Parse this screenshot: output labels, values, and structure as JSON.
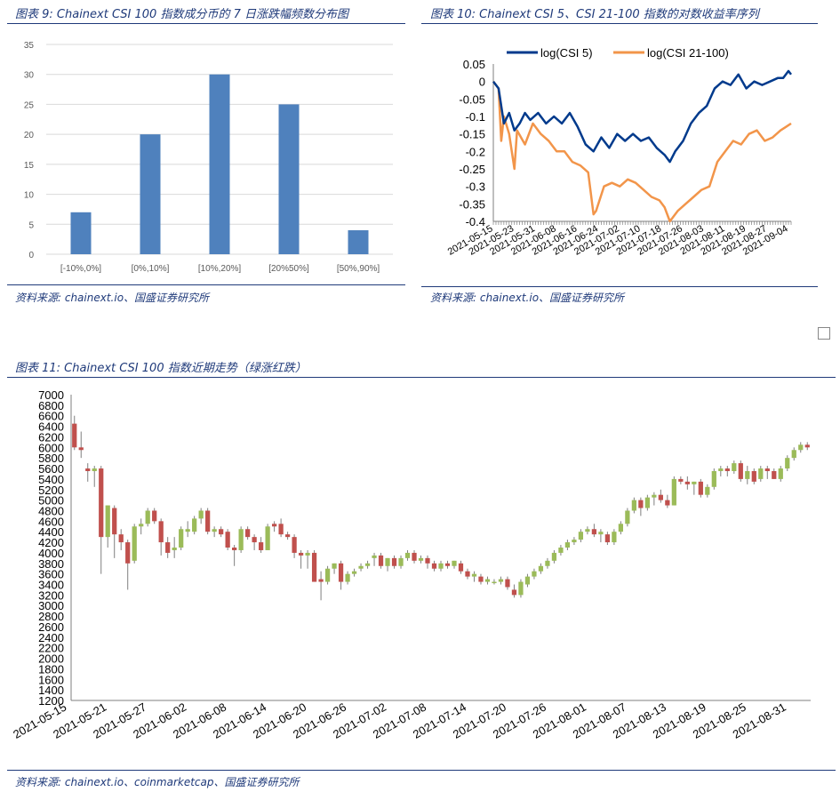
{
  "figures": [
    {
      "title": "图表 9:  Chainext CSI 100 指数成分币的 7 日涨跌幅频数分布图",
      "source": "资料来源:  chainext.io、国盛证券研究所"
    },
    {
      "title": "图表 10:  Chainext CSI 5、CSI 21-100 指数的对数收益率序列",
      "source": "资料来源:  chainext.io、国盛证券研究所"
    },
    {
      "title": "图表 11:  Chainext CSI 100 指数近期走势（绿涨红跌）",
      "source": "资料来源:  chainext.io、coinmarketcap、国盛证券研究所"
    }
  ],
  "colors": {
    "bar": "#4f81bd",
    "series1": "#003a8c",
    "series2": "#f2954a",
    "up": "#9bbb59",
    "down": "#c0504d",
    "title": "#1f3a7a"
  },
  "chart_data": [
    {
      "type": "bar",
      "title": "",
      "categories": [
        "[-10%,0%]",
        "[0%,10%]",
        "[10%,20%]",
        "[20%50%]",
        "[50%,90%]"
      ],
      "values": [
        7,
        20,
        30,
        25,
        4
      ],
      "ylim": [
        0,
        35
      ],
      "yticks": [
        0,
        5,
        10,
        15,
        20,
        25,
        30,
        35
      ],
      "grid": true,
      "xlabel": "",
      "ylabel": ""
    },
    {
      "type": "line",
      "title": "",
      "ylim": [
        -0.4,
        0.05
      ],
      "yticks": [
        0.05,
        0,
        -0.05,
        -0.1,
        -0.15,
        -0.2,
        -0.25,
        -0.3,
        -0.35,
        -0.4
      ],
      "ytick_labels": [
        "0.05",
        "0",
        "-0.05",
        "-0.1",
        "-0.15",
        "-0.2",
        "-0.25",
        "-0.3",
        "-0.35",
        "-0.4"
      ],
      "x_range": [
        "2021-05-15",
        "2021-09-05"
      ],
      "xtick_labels": [
        "2021-05-15",
        "2021-05-23",
        "2021-05-31",
        "2021-06-08",
        "2021-06-16",
        "2021-06-24",
        "2021-07-02",
        "2021-07-10",
        "2021-07-18",
        "2021-07-26",
        "2021-08-03",
        "2021-08-11",
        "2021-08-19",
        "2021-08-27",
        "2021-09-04"
      ],
      "legend": "top",
      "series": [
        {
          "name": "log(CSI 5)",
          "x": [
            "2021-05-15",
            "2021-05-17",
            "2021-05-19",
            "2021-05-21",
            "2021-05-23",
            "2021-05-25",
            "2021-05-27",
            "2021-05-29",
            "2021-06-01",
            "2021-06-04",
            "2021-06-07",
            "2021-06-10",
            "2021-06-13",
            "2021-06-16",
            "2021-06-19",
            "2021-06-22",
            "2021-06-25",
            "2021-06-28",
            "2021-07-01",
            "2021-07-04",
            "2021-07-07",
            "2021-07-10",
            "2021-07-13",
            "2021-07-16",
            "2021-07-19",
            "2021-07-21",
            "2021-07-23",
            "2021-07-26",
            "2021-07-29",
            "2021-08-01",
            "2021-08-04",
            "2021-08-07",
            "2021-08-10",
            "2021-08-13",
            "2021-08-16",
            "2021-08-19",
            "2021-08-22",
            "2021-08-25",
            "2021-08-28",
            "2021-08-31",
            "2021-09-02",
            "2021-09-04",
            "2021-09-05"
          ],
          "values": [
            0,
            -0.02,
            -0.12,
            -0.09,
            -0.14,
            -0.12,
            -0.09,
            -0.11,
            -0.09,
            -0.12,
            -0.1,
            -0.12,
            -0.09,
            -0.13,
            -0.18,
            -0.2,
            -0.16,
            -0.19,
            -0.15,
            -0.17,
            -0.15,
            -0.17,
            -0.16,
            -0.19,
            -0.21,
            -0.23,
            -0.2,
            -0.17,
            -0.12,
            -0.09,
            -0.07,
            -0.02,
            0,
            -0.01,
            0.02,
            -0.02,
            0,
            -0.01,
            0,
            0.01,
            0.01,
            0.03,
            0.02
          ]
        },
        {
          "name": "log(CSI 21-100)",
          "x": [
            "2021-05-15",
            "2021-05-17",
            "2021-05-18",
            "2021-05-19",
            "2021-05-21",
            "2021-05-23",
            "2021-05-24",
            "2021-05-27",
            "2021-05-30",
            "2021-06-02",
            "2021-06-05",
            "2021-06-08",
            "2021-06-11",
            "2021-06-14",
            "2021-06-17",
            "2021-06-20",
            "2021-06-22",
            "2021-06-23",
            "2021-06-26",
            "2021-06-29",
            "2021-07-02",
            "2021-07-05",
            "2021-07-08",
            "2021-07-11",
            "2021-07-14",
            "2021-07-17",
            "2021-07-19",
            "2021-07-21",
            "2021-07-24",
            "2021-07-27",
            "2021-07-30",
            "2021-08-02",
            "2021-08-05",
            "2021-08-08",
            "2021-08-11",
            "2021-08-14",
            "2021-08-17",
            "2021-08-20",
            "2021-08-23",
            "2021-08-26",
            "2021-08-29",
            "2021-09-01",
            "2021-09-03",
            "2021-09-05"
          ],
          "values": [
            0,
            -0.02,
            -0.17,
            -0.1,
            -0.15,
            -0.25,
            -0.14,
            -0.18,
            -0.12,
            -0.15,
            -0.17,
            -0.2,
            -0.2,
            -0.23,
            -0.24,
            -0.26,
            -0.38,
            -0.37,
            -0.3,
            -0.29,
            -0.3,
            -0.28,
            -0.29,
            -0.31,
            -0.33,
            -0.34,
            -0.36,
            -0.4,
            -0.37,
            -0.35,
            -0.33,
            -0.31,
            -0.3,
            -0.23,
            -0.2,
            -0.17,
            -0.18,
            -0.15,
            -0.14,
            -0.17,
            -0.16,
            -0.14,
            -0.13,
            -0.12
          ]
        }
      ]
    },
    {
      "type": "candlestick",
      "title": "",
      "ylim": [
        1200,
        7000
      ],
      "yticks": [
        1200,
        1400,
        1600,
        1800,
        2000,
        2200,
        2400,
        2600,
        2800,
        3000,
        3200,
        3400,
        3600,
        3800,
        4000,
        4200,
        4400,
        4600,
        4800,
        5000,
        5200,
        5400,
        5600,
        5800,
        6000,
        6200,
        6400,
        6600,
        6800,
        7000
      ],
      "x_start": "2021-05-15",
      "x_end": "2021-09-04",
      "xtick_labels": [
        "2021-05-15",
        "2021-05-21",
        "2021-05-27",
        "2021-06-02",
        "2021-06-08",
        "2021-06-14",
        "2021-06-20",
        "2021-06-26",
        "2021-07-02",
        "2021-07-08",
        "2021-07-14",
        "2021-07-20",
        "2021-07-26",
        "2021-08-01",
        "2021-08-07",
        "2021-08-13",
        "2021-08-19",
        "2021-08-25",
        "2021-08-31"
      ],
      "ohlc": [
        [
          6450,
          6600,
          5950,
          6000
        ],
        [
          6000,
          6300,
          5800,
          5950
        ],
        [
          5600,
          5700,
          5350,
          5550
        ],
        [
          5550,
          5650,
          5250,
          5600
        ],
        [
          5600,
          5650,
          3600,
          4300
        ],
        [
          4300,
          4900,
          4100,
          4900
        ],
        [
          4850,
          4900,
          3900,
          4350
        ],
        [
          4350,
          4450,
          4050,
          4200
        ],
        [
          4200,
          4250,
          3300,
          3800
        ],
        [
          3850,
          4550,
          3800,
          4500
        ],
        [
          4500,
          4650,
          4350,
          4550
        ],
        [
          4550,
          4850,
          4500,
          4800
        ],
        [
          4800,
          4850,
          4550,
          4600
        ],
        [
          4600,
          4650,
          3950,
          4200
        ],
        [
          4200,
          4300,
          3900,
          4000
        ],
        [
          4050,
          4300,
          3900,
          4100
        ],
        [
          4100,
          4500,
          4050,
          4450
        ],
        [
          4400,
          4600,
          4300,
          4450
        ],
        [
          4400,
          4700,
          4350,
          4650
        ],
        [
          4650,
          4850,
          4550,
          4800
        ],
        [
          4800,
          4850,
          4350,
          4400
        ],
        [
          4400,
          4500,
          4300,
          4450
        ],
        [
          4450,
          4500,
          4300,
          4350
        ],
        [
          4400,
          4450,
          4050,
          4100
        ],
        [
          4100,
          4150,
          3750,
          4050
        ],
        [
          4050,
          4500,
          4000,
          4450
        ],
        [
          4450,
          4500,
          4250,
          4300
        ],
        [
          4300,
          4350,
          4050,
          4200
        ],
        [
          4200,
          4300,
          4000,
          4050
        ],
        [
          4050,
          4550,
          4050,
          4500
        ],
        [
          4550,
          4600,
          4400,
          4500
        ],
        [
          4550,
          4650,
          4300,
          4350
        ],
        [
          4350,
          4400,
          4250,
          4300
        ],
        [
          4300,
          4350,
          3900,
          4000
        ],
        [
          4000,
          4050,
          3700,
          3950
        ],
        [
          3950,
          4050,
          3700,
          4000
        ],
        [
          4000,
          4050,
          3450,
          3450
        ],
        [
          3500,
          3650,
          3100,
          3450
        ],
        [
          3450,
          3750,
          3400,
          3700
        ],
        [
          3700,
          3800,
          3600,
          3800
        ],
        [
          3800,
          3850,
          3300,
          3450
        ],
        [
          3450,
          3650,
          3400,
          3600
        ],
        [
          3600,
          3700,
          3550,
          3650
        ],
        [
          3700,
          3800,
          3650,
          3750
        ],
        [
          3750,
          3850,
          3700,
          3800
        ],
        [
          3900,
          4000,
          3750,
          3950
        ],
        [
          3950,
          4000,
          3700,
          3750
        ],
        [
          3750,
          3900,
          3650,
          3900
        ],
        [
          3900,
          3950,
          3700,
          3750
        ],
        [
          3750,
          3950,
          3700,
          3900
        ],
        [
          3900,
          4050,
          3850,
          4000
        ],
        [
          4000,
          4050,
          3800,
          3850
        ],
        [
          3850,
          3950,
          3800,
          3900
        ],
        [
          3900,
          3950,
          3700,
          3800
        ],
        [
          3800,
          3850,
          3650,
          3700
        ],
        [
          3700,
          3850,
          3650,
          3800
        ],
        [
          3800,
          3850,
          3700,
          3750
        ],
        [
          3750,
          3850,
          3700,
          3850
        ],
        [
          3800,
          3850,
          3600,
          3650
        ],
        [
          3650,
          3700,
          3500,
          3550
        ],
        [
          3550,
          3650,
          3450,
          3600
        ],
        [
          3550,
          3600,
          3400,
          3450
        ],
        [
          3450,
          3550,
          3400,
          3500
        ],
        [
          3450,
          3500,
          3400,
          3450
        ],
        [
          3450,
          3550,
          3400,
          3500
        ],
        [
          3500,
          3550,
          3300,
          3350
        ],
        [
          3300,
          3400,
          3150,
          3200
        ],
        [
          3200,
          3500,
          3150,
          3450
        ],
        [
          3400,
          3600,
          3350,
          3550
        ],
        [
          3550,
          3700,
          3500,
          3650
        ],
        [
          3650,
          3800,
          3600,
          3750
        ],
        [
          3750,
          3900,
          3700,
          3850
        ],
        [
          3850,
          4050,
          3800,
          4000
        ],
        [
          4000,
          4150,
          3950,
          4100
        ],
        [
          4100,
          4250,
          4050,
          4200
        ],
        [
          4200,
          4300,
          4150,
          4250
        ],
        [
          4250,
          4450,
          4200,
          4400
        ],
        [
          4400,
          4500,
          4350,
          4450
        ],
        [
          4450,
          4550,
          4300,
          4350
        ],
        [
          4350,
          4450,
          4200,
          4400
        ],
        [
          4350,
          4400,
          4150,
          4200
        ],
        [
          4200,
          4450,
          4150,
          4400
        ],
        [
          4400,
          4600,
          4350,
          4550
        ],
        [
          4550,
          4850,
          4500,
          4800
        ],
        [
          4800,
          5050,
          4750,
          5000
        ],
        [
          5000,
          5050,
          4700,
          4850
        ],
        [
          4850,
          5100,
          4800,
          5050
        ],
        [
          5050,
          5150,
          4900,
          5100
        ],
        [
          5100,
          5200,
          4950,
          5000
        ],
        [
          5000,
          5100,
          4850,
          4900
        ],
        [
          4900,
          5450,
          4900,
          5400
        ],
        [
          5400,
          5450,
          5300,
          5350
        ],
        [
          5350,
          5450,
          5200,
          5300
        ],
        [
          5300,
          5350,
          5100,
          5350
        ],
        [
          5350,
          5400,
          5050,
          5100
        ],
        [
          5100,
          5300,
          5050,
          5250
        ],
        [
          5250,
          5600,
          5200,
          5550
        ],
        [
          5550,
          5650,
          5450,
          5600
        ],
        [
          5600,
          5650,
          5450,
          5550
        ],
        [
          5550,
          5750,
          5500,
          5700
        ],
        [
          5700,
          5750,
          5350,
          5400
        ],
        [
          5400,
          5650,
          5300,
          5550
        ],
        [
          5550,
          5600,
          5300,
          5350
        ],
        [
          5400,
          5650,
          5350,
          5600
        ],
        [
          5600,
          5650,
          5400,
          5550
        ],
        [
          5550,
          5600,
          5400,
          5400
        ],
        [
          5400,
          5650,
          5350,
          5600
        ],
        [
          5600,
          5850,
          5550,
          5800
        ],
        [
          5800,
          6000,
          5750,
          5950
        ],
        [
          5950,
          6100,
          5900,
          6050
        ],
        [
          6050,
          6100,
          5950,
          6000
        ]
      ]
    }
  ]
}
